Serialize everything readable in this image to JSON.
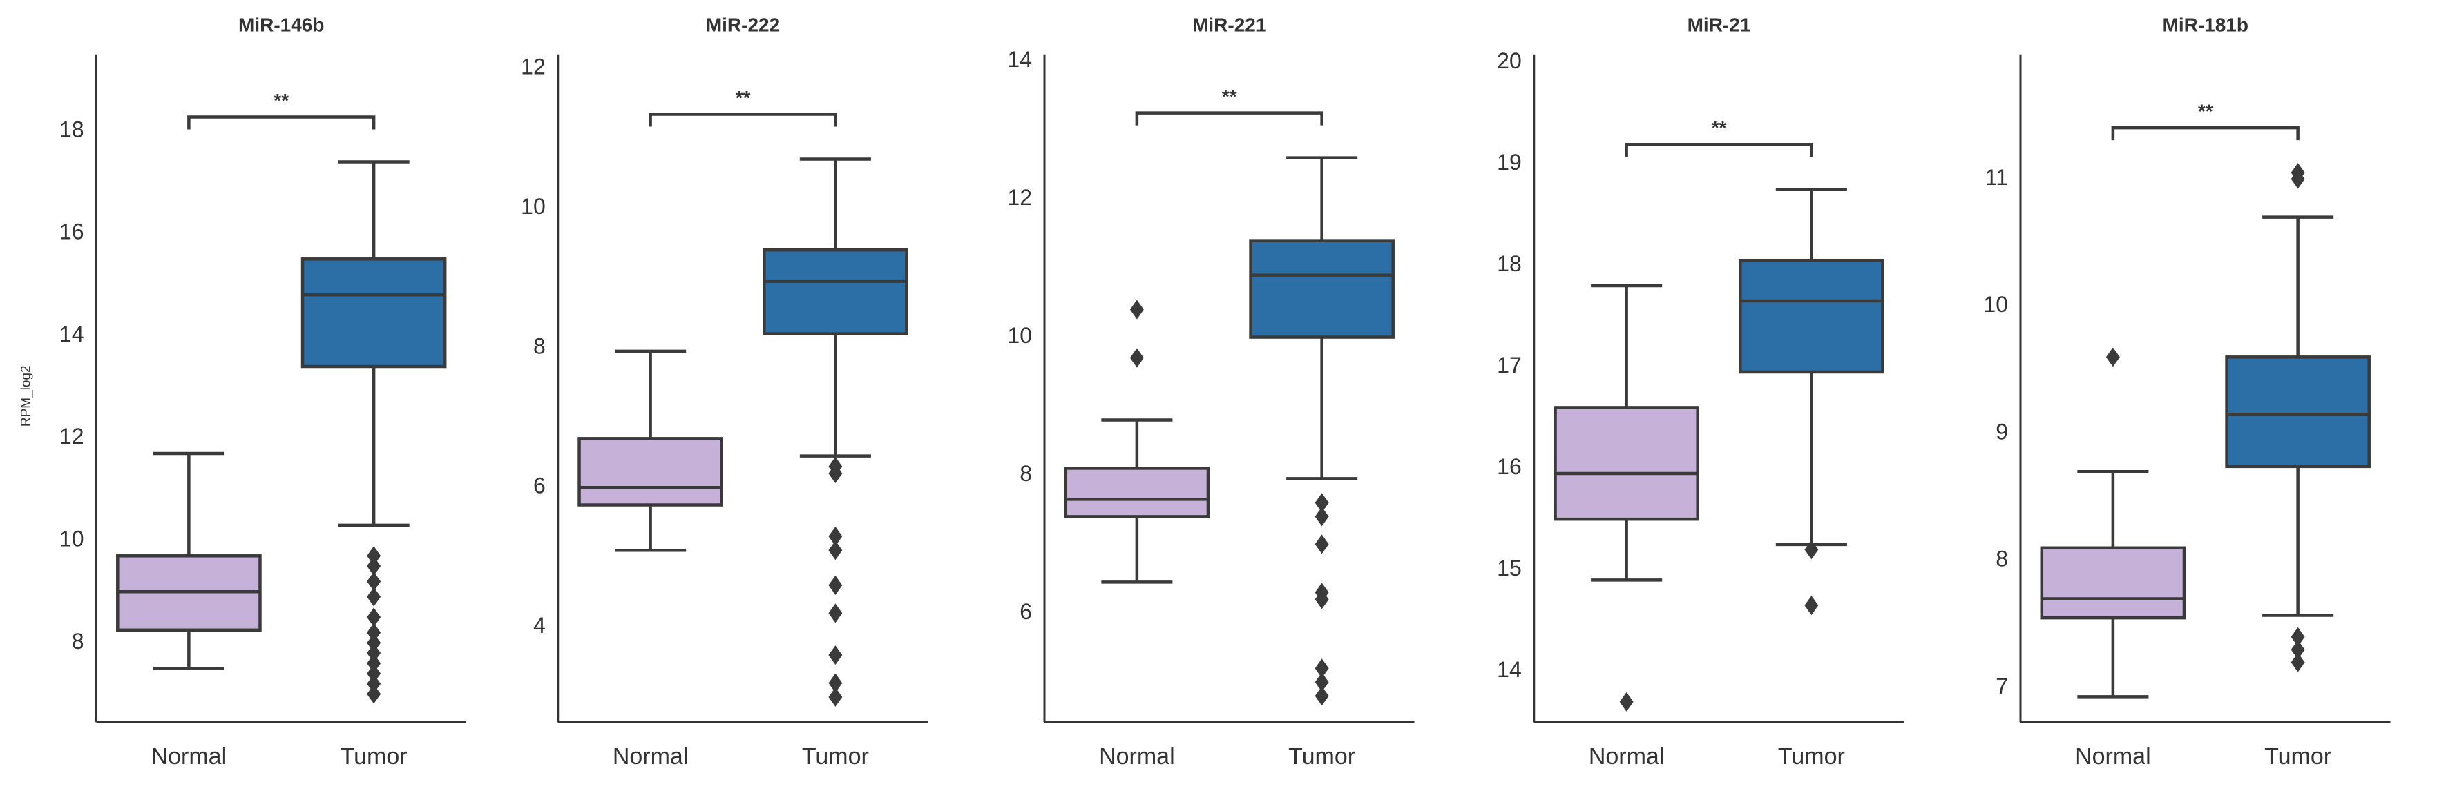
{
  "chart_data": [
    {
      "type": "box",
      "title": "MiR-146b",
      "ylabel": "RPM_log2",
      "categories": [
        "Normal",
        "Tumor"
      ],
      "colors": [
        "#c6b2d8",
        "#2c6fa6"
      ],
      "boxes": [
        {
          "whislo": 7.5,
          "q1": 8.25,
          "med": 9.0,
          "q3": 9.7,
          "whishi": 11.7,
          "fliers": []
        },
        {
          "whislo": 10.3,
          "q1": 13.4,
          "med": 14.8,
          "q3": 15.5,
          "whishi": 17.4,
          "fliers": [
            9.7,
            9.5,
            9.2,
            8.9,
            8.5,
            8.2,
            8.0,
            7.8,
            7.6,
            7.4,
            7.2,
            7.0
          ]
        }
      ],
      "annotation": "**",
      "ylim": [
        6.45,
        19.5
      ],
      "yticks": [
        8,
        10,
        12,
        14,
        16,
        18
      ]
    },
    {
      "type": "box",
      "title": "MiR-222",
      "categories": [
        "Normal",
        "Tumor"
      ],
      "colors": [
        "#c6b2d8",
        "#2c6fa6"
      ],
      "boxes": [
        {
          "whislo": 5.1,
          "q1": 5.75,
          "med": 6.0,
          "q3": 6.7,
          "whishi": 7.95,
          "fliers": []
        },
        {
          "whislo": 6.45,
          "q1": 8.2,
          "med": 8.95,
          "q3": 9.4,
          "whishi": 10.7,
          "fliers": [
            6.3,
            6.2,
            5.3,
            5.1,
            4.6,
            4.2,
            3.6,
            3.2,
            3.0
          ]
        }
      ],
      "annotation": "**",
      "ylim": [
        2.64,
        12.2
      ],
      "yticks": [
        4,
        6,
        8,
        10,
        12
      ]
    },
    {
      "type": "box",
      "title": "MiR-221",
      "categories": [
        "Normal",
        "Tumor"
      ],
      "colors": [
        "#c6b2d8",
        "#2c6fa6"
      ],
      "boxes": [
        {
          "whislo": 6.45,
          "q1": 7.4,
          "med": 7.65,
          "q3": 8.1,
          "whishi": 8.8,
          "fliers": [
            10.4,
            9.7
          ]
        },
        {
          "whislo": 7.95,
          "q1": 10.0,
          "med": 10.9,
          "q3": 11.4,
          "whishi": 12.6,
          "fliers": [
            7.6,
            7.4,
            7.0,
            6.3,
            6.2,
            5.2,
            5.0,
            4.8
          ]
        }
      ],
      "annotation": "**",
      "ylim": [
        4.42,
        14.1
      ],
      "yticks": [
        6,
        8,
        10,
        12,
        14
      ]
    },
    {
      "type": "box",
      "title": "MiR-21",
      "categories": [
        "Normal",
        "Tumor"
      ],
      "colors": [
        "#c6b2d8",
        "#2c6fa6"
      ],
      "boxes": [
        {
          "whislo": 14.9,
          "q1": 15.5,
          "med": 15.95,
          "q3": 16.6,
          "whishi": 17.8,
          "fliers": [
            13.7
          ]
        },
        {
          "whislo": 15.25,
          "q1": 16.95,
          "med": 17.65,
          "q3": 18.05,
          "whishi": 18.75,
          "fliers": [
            15.2,
            14.65
          ]
        }
      ],
      "annotation": "**",
      "ylim": [
        13.5,
        20.08
      ],
      "yticks": [
        14,
        15,
        16,
        17,
        18,
        19,
        20
      ]
    },
    {
      "type": "box",
      "title": "MiR-181b",
      "categories": [
        "Normal",
        "Tumor"
      ],
      "colors": [
        "#c6b2d8",
        "#2c6fa6"
      ],
      "boxes": [
        {
          "whislo": 6.93,
          "q1": 7.55,
          "med": 7.7,
          "q3": 8.1,
          "whishi": 8.7,
          "fliers": [
            9.6
          ]
        },
        {
          "whislo": 7.57,
          "q1": 8.74,
          "med": 9.15,
          "q3": 9.6,
          "whishi": 10.7,
          "fliers": [
            11.05,
            11.0,
            7.4,
            7.3,
            7.2
          ]
        }
      ],
      "annotation": "**",
      "ylim": [
        6.73,
        11.98
      ],
      "yticks": [
        7,
        8,
        9,
        10,
        11
      ]
    }
  ]
}
